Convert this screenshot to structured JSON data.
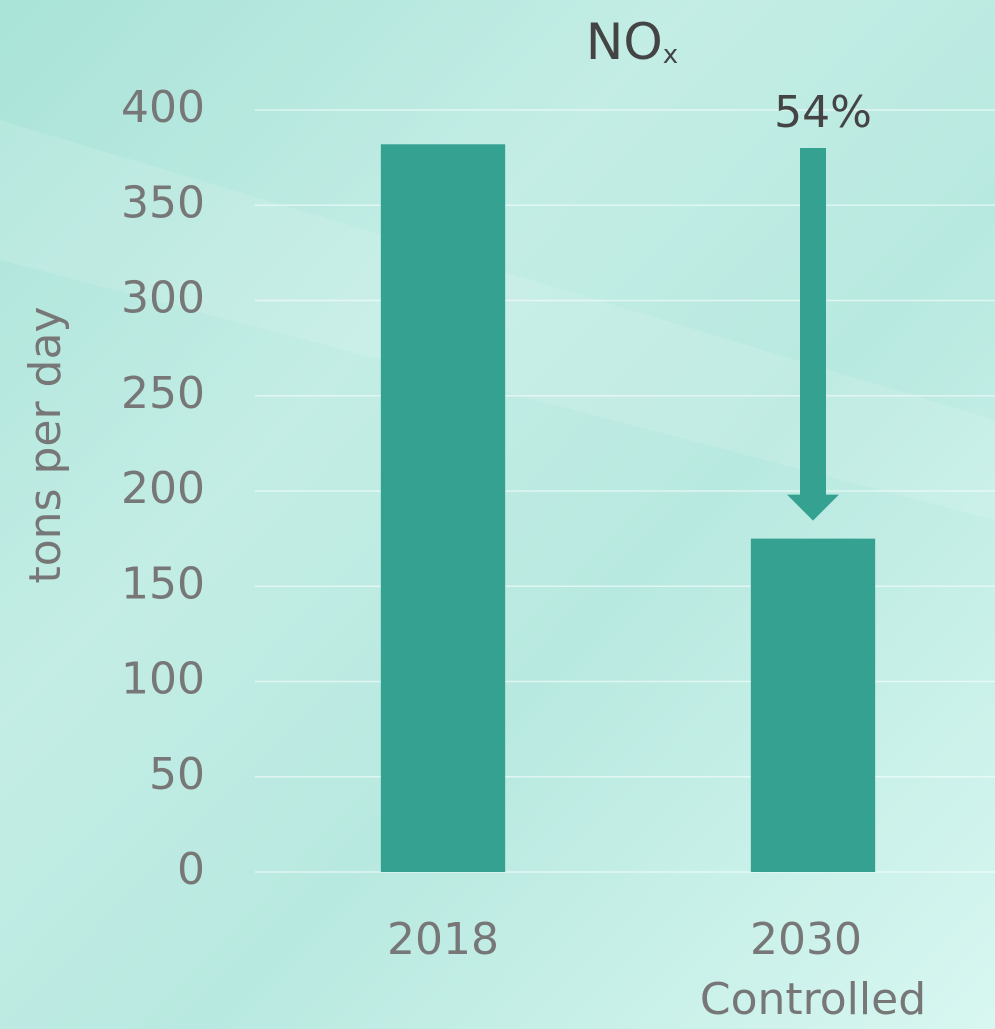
{
  "chart_data": {
    "type": "bar",
    "title": "NO",
    "title_subscript": "x",
    "y_label": "tons per day",
    "categories": [
      "2018",
      "2030 Controlled"
    ],
    "values": [
      382,
      175
    ],
    "color": "#35a291",
    "annotation": "54%",
    "ylim": [
      0,
      400
    ],
    "yticks": [
      0,
      50,
      100,
      150,
      200,
      250,
      300,
      350,
      400
    ],
    "grid": true
  }
}
